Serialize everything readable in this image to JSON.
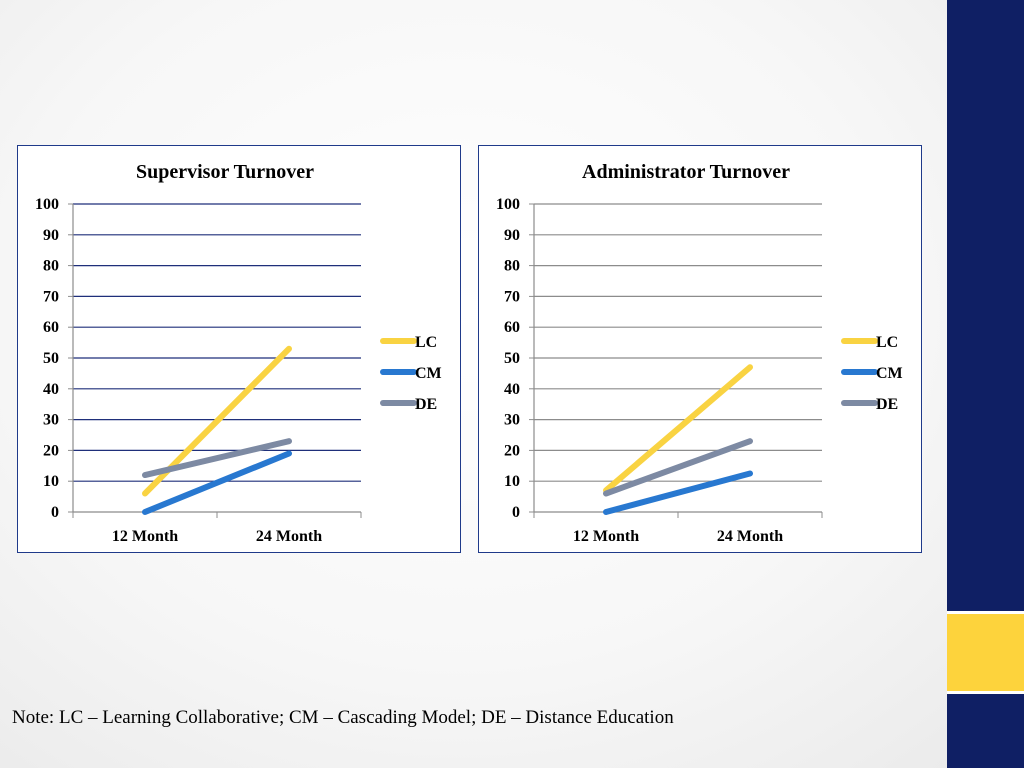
{
  "chart_data": [
    {
      "type": "line",
      "title": "Supervisor Turnover",
      "categories": [
        "12 Month",
        "24 Month"
      ],
      "yticks": [
        "0",
        "10",
        "20",
        "30",
        "40",
        "50",
        "60",
        "70",
        "80",
        "90",
        "100"
      ],
      "ylim": [
        0,
        100
      ],
      "grid": true,
      "grid_color": "#1f2f7a",
      "legend": "right",
      "series": [
        {
          "name": "LC",
          "values": [
            6,
            53
          ],
          "color": "#f9d342"
        },
        {
          "name": "CM",
          "values": [
            0,
            19
          ],
          "color": "#2878d0"
        },
        {
          "name": "DE",
          "values": [
            12,
            23
          ],
          "color": "#7d8aa3"
        }
      ]
    },
    {
      "type": "line",
      "title": "Administrator Turnover",
      "categories": [
        "12 Month",
        "24 Month"
      ],
      "yticks": [
        "0",
        "10",
        "20",
        "30",
        "40",
        "50",
        "60",
        "70",
        "80",
        "90",
        "100"
      ],
      "ylim": [
        0,
        100
      ],
      "grid": true,
      "grid_color": "#8c8c8c",
      "legend": "right",
      "series": [
        {
          "name": "LC",
          "values": [
            7,
            47
          ],
          "color": "#f9d342"
        },
        {
          "name": "CM",
          "values": [
            0,
            12.5
          ],
          "color": "#2878d0"
        },
        {
          "name": "DE",
          "values": [
            6,
            23
          ],
          "color": "#7d8aa3"
        }
      ]
    }
  ],
  "footer": {
    "note": "Note: LC – Learning Collaborative; CM – Cascading Model; DE – Distance Education"
  },
  "theme": {
    "navy": "#0f1f64",
    "gold": "#fdd33c"
  }
}
